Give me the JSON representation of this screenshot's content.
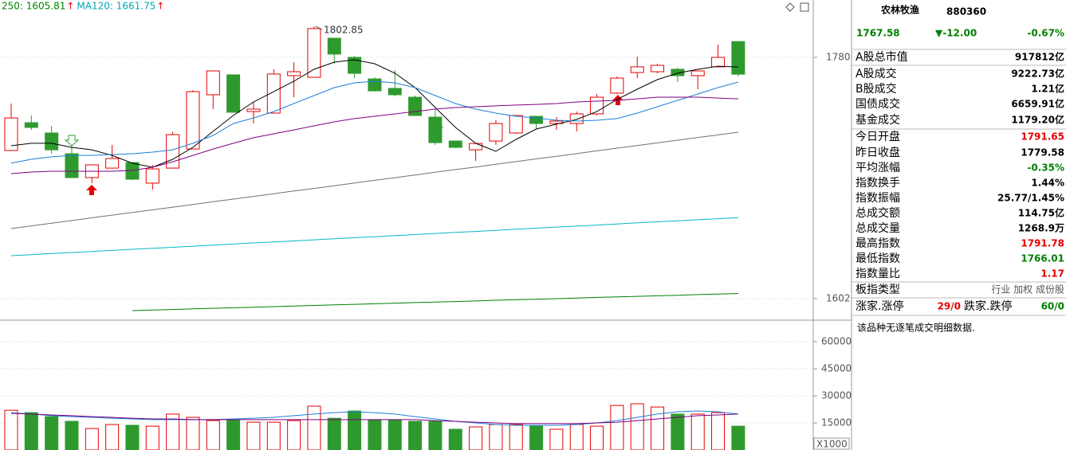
{
  "chart_data": {
    "type": "candlestick",
    "ma_labels": [
      {
        "text": "250: 1605.81",
        "arrow": "↑",
        "color": "#008000"
      },
      {
        "text": "MA120: 1661.75",
        "arrow": "↑",
        "color": "#00a8b8"
      }
    ],
    "high_label": "1802.85",
    "ylim": [
      1587.3,
      1822.3
    ],
    "yticks": [
      1780,
      1602
    ],
    "colors": {
      "up": "#e60000",
      "down": "#2e9a2e"
    },
    "open": [
      1711.3,
      1731.8,
      1724.2,
      1708.9,
      1691.3,
      1698.3,
      1702.4,
      1687.2,
      1698.3,
      1712.4,
      1752.4,
      1767.1,
      1740.0,
      1738.9,
      1766.5,
      1765.3,
      1794.1,
      1780.0,
      1764.1,
      1757.1,
      1750.6,
      1735.9,
      1718.3,
      1711.8,
      1718.3,
      1724.2,
      1736.5,
      1731.2,
      1731.2,
      1738.3,
      1753.6,
      1768.8,
      1769.4,
      1771.2,
      1766.5,
      1773.0,
      1791.65
    ],
    "close": [
      1735.3,
      1728.3,
      1711.8,
      1691.3,
      1700.7,
      1705.4,
      1690.1,
      1697.7,
      1723.0,
      1754.7,
      1770.0,
      1739.5,
      1741.8,
      1767.7,
      1769.4,
      1801.2,
      1782.4,
      1768.2,
      1755.3,
      1752.4,
      1737.1,
      1717.1,
      1713.6,
      1716.5,
      1731.2,
      1737.1,
      1731.2,
      1733.0,
      1738.3,
      1750.6,
      1764.7,
      1773.0,
      1774.1,
      1766.5,
      1770.0,
      1780.0,
      1767.58
    ],
    "high": [
      1745.9,
      1737.1,
      1729.5,
      1715.4,
      1700.7,
      1715.4,
      1702.4,
      1700.7,
      1725.0,
      1755.9,
      1770.0,
      1767.1,
      1747.0,
      1771.2,
      1776.5,
      1802.85,
      1794.1,
      1781.2,
      1765.3,
      1770.6,
      1751.8,
      1741.8,
      1718.3,
      1716.5,
      1733.6,
      1737.1,
      1736.5,
      1735.9,
      1740.0,
      1753.0,
      1765.9,
      1780.6,
      1775.3,
      1772.4,
      1770.0,
      1789.4,
      1791.78
    ],
    "low": [
      1711.3,
      1726.5,
      1708.9,
      1691.3,
      1687.2,
      1698.3,
      1689.5,
      1682.5,
      1698.3,
      1712.4,
      1741.8,
      1739.5,
      1731.2,
      1738.9,
      1750.6,
      1765.3,
      1775.3,
      1764.7,
      1754.7,
      1751.2,
      1737.1,
      1715.4,
      1713.0,
      1703.6,
      1715.4,
      1723.6,
      1727.1,
      1726.5,
      1725.4,
      1737.1,
      1753.0,
      1764.7,
      1768.2,
      1761.8,
      1756.5,
      1773.0,
      1766.01
    ],
    "ma_series": [
      {
        "color": "#000000",
        "values": [
          1714.8,
          1716.6,
          1716.6,
          1713.6,
          1711.8,
          1707.7,
          1701.9,
          1698.9,
          1704.8,
          1713.6,
          1725.4,
          1737.1,
          1747.1,
          1754.7,
          1762.4,
          1771.2,
          1776.5,
          1778.2,
          1775.3,
          1768.3,
          1757.7,
          1743.0,
          1728.3,
          1716.6,
          1710.7,
          1719.5,
          1727.1,
          1730.7,
          1734.2,
          1740.0,
          1748.9,
          1756.5,
          1763.6,
          1768.3,
          1771.2,
          1773.5,
          1772.9
        ]
      },
      {
        "color": "#1e7fd8",
        "values": [
          1701.9,
          1704.8,
          1706.6,
          1707.7,
          1707.7,
          1708.3,
          1708.9,
          1710.1,
          1711.8,
          1716.6,
          1722.4,
          1731.2,
          1735.3,
          1740.0,
          1745.9,
          1751.8,
          1757.7,
          1761.2,
          1762.4,
          1761.2,
          1757.7,
          1751.8,
          1745.9,
          1741.8,
          1738.9,
          1736.5,
          1735.3,
          1733.6,
          1733.0,
          1733.6,
          1734.8,
          1738.9,
          1743.6,
          1748.3,
          1753.0,
          1757.7,
          1761.8
        ]
      },
      {
        "color": "#800080",
        "values": [
          1694.2,
          1695.4,
          1696.0,
          1696.0,
          1696.0,
          1696.0,
          1696.6,
          1698.9,
          1703.0,
          1707.7,
          1712.4,
          1716.6,
          1720.7,
          1723.6,
          1726.5,
          1729.5,
          1732.4,
          1734.8,
          1736.5,
          1738.3,
          1740.0,
          1741.8,
          1743.0,
          1743.6,
          1744.2,
          1744.8,
          1745.3,
          1745.9,
          1747.1,
          1747.7,
          1748.3,
          1749.4,
          1750.6,
          1750.6,
          1750.6,
          1750.0,
          1749.4
        ]
      },
      {
        "color": "#707070",
        "values": [
          1653.7,
          1655.7,
          1657.6,
          1659.6,
          1661.6,
          1663.6,
          1665.6,
          1667.5,
          1669.5,
          1671.5,
          1673.5,
          1675.4,
          1677.4,
          1679.4,
          1681.4,
          1683.3,
          1685.3,
          1687.3,
          1689.3,
          1691.2,
          1693.2,
          1695.2,
          1697.2,
          1699.1,
          1701.1,
          1703.1,
          1705.1,
          1707.0,
          1709.0,
          1711.0,
          1713.0,
          1714.9,
          1716.9,
          1718.9,
          1720.9,
          1722.8,
          1724.8
        ]
      },
      {
        "color": "#00b8c8",
        "values": [
          1633.7,
          1634.5,
          1635.3,
          1636.0,
          1636.8,
          1637.6,
          1638.4,
          1639.2,
          1639.9,
          1640.7,
          1641.5,
          1642.3,
          1643.1,
          1643.8,
          1644.6,
          1645.4,
          1646.2,
          1647.0,
          1647.7,
          1648.5,
          1649.3,
          1650.1,
          1650.9,
          1651.6,
          1652.4,
          1653.2,
          1654.0,
          1654.8,
          1655.5,
          1656.3,
          1657.1,
          1657.9,
          1658.7,
          1659.4,
          1660.2,
          1661.0,
          1661.75
        ]
      },
      {
        "color": "#008000",
        "values": [
          null,
          null,
          null,
          null,
          null,
          null,
          1593.2,
          1593.6,
          1594.0,
          1594.5,
          1594.9,
          1595.3,
          1595.7,
          1596.1,
          1596.6,
          1597.0,
          1597.4,
          1597.8,
          1598.2,
          1598.7,
          1599.1,
          1599.5,
          1599.9,
          1600.3,
          1600.8,
          1601.2,
          1601.6,
          1602.0,
          1602.4,
          1602.9,
          1603.3,
          1603.7,
          1604.1,
          1604.5,
          1605.0,
          1605.4,
          1605.81
        ]
      }
    ],
    "volume": {
      "ylim": [
        0,
        70600
      ],
      "yticks": [
        15000,
        30000,
        45000,
        60000
      ],
      "unit": "X1000",
      "values": [
        22000,
        20700,
        18500,
        15900,
        11900,
        14100,
        13700,
        13200,
        19900,
        18100,
        16300,
        16800,
        15400,
        15400,
        16300,
        24300,
        17600,
        21600,
        16800,
        16800,
        15900,
        15900,
        11500,
        12800,
        14100,
        14100,
        13200,
        11500,
        14100,
        13200,
        24700,
        25600,
        23800,
        19900,
        19900,
        20700,
        13200
      ],
      "ma_series": [
        {
          "color": "#1e7fd8",
          "values": [
            20700,
            19900,
            19000,
            18500,
            18100,
            17600,
            17200,
            16800,
            16800,
            16800,
            16800,
            17200,
            17600,
            18100,
            19000,
            19900,
            20700,
            21200,
            20700,
            19900,
            18500,
            17200,
            15900,
            15000,
            14100,
            13700,
            13700,
            13700,
            14100,
            15000,
            16300,
            18100,
            19900,
            21200,
            21600,
            21200,
            19900
          ]
        },
        {
          "color": "#800080",
          "values": [
            20300,
            19900,
            19400,
            19000,
            18500,
            18100,
            17600,
            17200,
            17200,
            16800,
            16800,
            16800,
            16800,
            16800,
            16800,
            16800,
            16800,
            16800,
            16800,
            16800,
            16800,
            16300,
            15900,
            15400,
            15000,
            14600,
            14600,
            14600,
            14600,
            15000,
            15400,
            16300,
            17200,
            18100,
            19000,
            19400,
            19900
          ]
        }
      ]
    }
  },
  "panel": {
    "title": "农林牧渔",
    "code": "880360",
    "price": "1767.58",
    "change": "▼-12.00",
    "pct": "-0.67%",
    "rows": [
      {
        "label": "A股总市值",
        "value": "917812亿",
        "color": "#000000"
      },
      {
        "label": "A股成交",
        "value": "9222.73亿",
        "color": "#000000"
      },
      {
        "label": "B股成交",
        "value": "1.21亿",
        "color": "#000000"
      },
      {
        "label": "国债成交",
        "value": "6659.91亿",
        "color": "#000000"
      },
      {
        "label": "基金成交",
        "value": "1179.20亿",
        "color": "#000000"
      },
      {
        "label": "今日开盘",
        "value": "1791.65",
        "color": "#e60000"
      },
      {
        "label": "昨日收盘",
        "value": "1779.58",
        "color": "#000000"
      },
      {
        "label": "平均涨幅",
        "value": "-0.35%",
        "color": "#008000"
      },
      {
        "label": "指数换手",
        "value": "1.44%",
        "color": "#000000"
      },
      {
        "label": "指数振幅",
        "value": "25.77/1.45%",
        "color": "#000000"
      },
      {
        "label": "总成交额",
        "value": "114.75亿",
        "color": "#000000"
      },
      {
        "label": "总成交量",
        "value": "1268.9万",
        "color": "#000000"
      },
      {
        "label": "最高指数",
        "value": "1791.78",
        "color": "#e60000"
      },
      {
        "label": "最低指数",
        "value": "1766.01",
        "color": "#008000"
      },
      {
        "label": "指数量比",
        "value": "1.17",
        "color": "#e60000"
      },
      {
        "label": "板指类型",
        "value": "行业 加权 成份股",
        "color": "#555555"
      }
    ],
    "last_row": {
      "label": "涨家.涨停",
      "value": "29/0",
      "label2": "跌家.跌停",
      "value2": "60/0"
    },
    "message": "该品种无逐笔成交明细数据."
  }
}
